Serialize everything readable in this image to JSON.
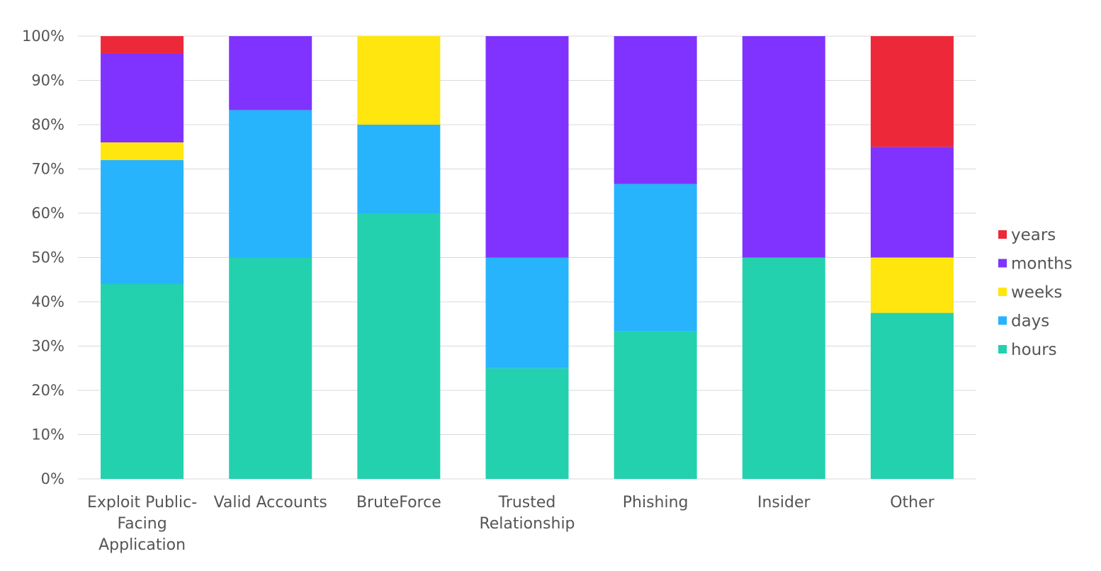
{
  "chart_data": {
    "type": "bar",
    "stacked": true,
    "percent_stacked": true,
    "categories": [
      [
        "Exploit Public-",
        "Facing",
        "Application"
      ],
      [
        "Valid Accounts"
      ],
      [
        "BruteForce"
      ],
      [
        "Trusted",
        "Relationship"
      ],
      [
        "Phishing"
      ],
      [
        "Insider"
      ],
      [
        "Other"
      ]
    ],
    "series": [
      {
        "name": "hours",
        "color": "#23D1AE",
        "values": [
          44,
          50,
          60,
          25,
          33.3,
          50,
          37.5
        ]
      },
      {
        "name": "days",
        "color": "#27B4FD",
        "values": [
          28,
          33.3,
          20,
          25,
          33.3,
          0,
          0
        ]
      },
      {
        "name": "weeks",
        "color": "#FFE60F",
        "values": [
          4,
          0,
          20,
          0,
          0,
          0,
          12.5
        ]
      },
      {
        "name": "months",
        "color": "#8033FE",
        "values": [
          20,
          16.7,
          0,
          50,
          33.4,
          50,
          25
        ]
      },
      {
        "name": "years",
        "color": "#ED2939",
        "values": [
          4,
          0,
          0,
          0,
          0,
          0,
          25
        ]
      }
    ],
    "legend_order": [
      "years",
      "months",
      "weeks",
      "days",
      "hours"
    ],
    "legend_position": "right",
    "ylim": [
      0,
      100
    ],
    "yticks": [
      {
        "value": 0,
        "label": "0%"
      },
      {
        "value": 10,
        "label": "10%"
      },
      {
        "value": 20,
        "label": "20%"
      },
      {
        "value": 30,
        "label": "30%"
      },
      {
        "value": 40,
        "label": "40%"
      },
      {
        "value": 50,
        "label": "50%"
      },
      {
        "value": 60,
        "label": "60%"
      },
      {
        "value": 70,
        "label": "70%"
      },
      {
        "value": 80,
        "label": "80%"
      },
      {
        "value": 90,
        "label": "90%"
      },
      {
        "value": 100,
        "label": "100%"
      }
    ],
    "grid": true,
    "title": "",
    "xlabel": "",
    "ylabel": ""
  },
  "colors": {
    "grid": "#d9d9d9",
    "axis_text": "#555555",
    "background": "#ffffff"
  }
}
